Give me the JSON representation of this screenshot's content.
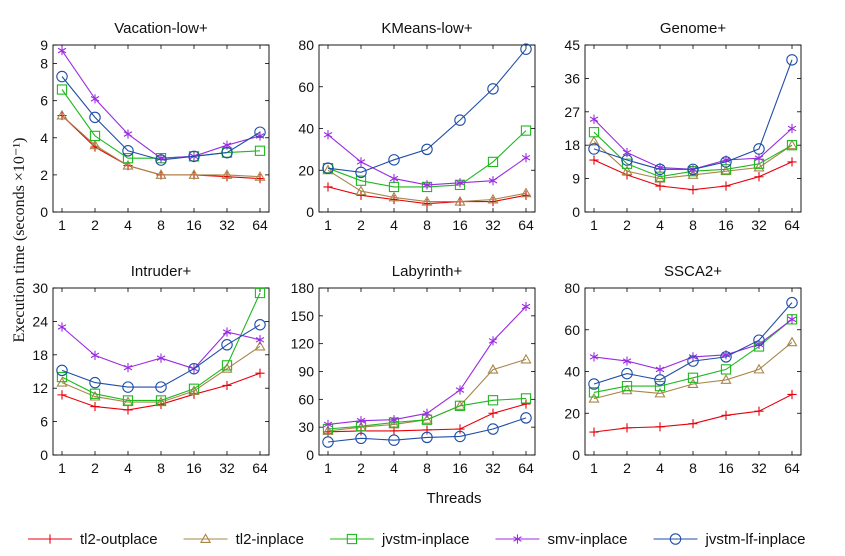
{
  "figure": {
    "ylabel": "Execution time (seconds ×10⁻¹)",
    "xlabel": "Threads"
  },
  "legend": [
    {
      "name": "tl2-outplace",
      "color": "#e8000b",
      "marker": "plus"
    },
    {
      "name": "tl2-inplace",
      "color": "#a8864a",
      "marker": "triangle"
    },
    {
      "name": "jvstm-inplace",
      "color": "#1fb81f",
      "marker": "square"
    },
    {
      "name": "smv-inplace",
      "color": "#9a2be2",
      "marker": "star"
    },
    {
      "name": "jvstm-lf-inplace",
      "color": "#1f4ea8",
      "marker": "circle"
    }
  ],
  "chart_data": [
    {
      "type": "line",
      "title": "Vacation-low+",
      "categories": [
        "1",
        "2",
        "4",
        "8",
        "16",
        "32",
        "64"
      ],
      "yticks": [
        0,
        2,
        4,
        6,
        8,
        9
      ],
      "ylim": [
        0,
        9
      ],
      "series": [
        {
          "name": "tl2-outplace",
          "values": [
            5.2,
            3.5,
            2.5,
            2.0,
            2.0,
            1.9,
            1.8
          ]
        },
        {
          "name": "tl2-inplace",
          "values": [
            5.2,
            3.6,
            2.5,
            2.0,
            2.0,
            2.0,
            1.9
          ]
        },
        {
          "name": "jvstm-inplace",
          "values": [
            6.6,
            4.1,
            2.9,
            2.9,
            3.0,
            3.2,
            3.3
          ]
        },
        {
          "name": "smv-inplace",
          "values": [
            8.7,
            6.1,
            4.2,
            2.9,
            3.0,
            3.6,
            4.1
          ]
        },
        {
          "name": "jvstm-lf-inplace",
          "values": [
            7.3,
            5.1,
            3.3,
            2.8,
            3.0,
            3.2,
            4.3
          ]
        }
      ]
    },
    {
      "type": "line",
      "title": "KMeans-low+",
      "categories": [
        "1",
        "2",
        "4",
        "8",
        "16",
        "32",
        "64"
      ],
      "yticks": [
        0,
        20,
        40,
        60,
        80
      ],
      "ylim": [
        0,
        80
      ],
      "series": [
        {
          "name": "tl2-outplace",
          "values": [
            12,
            8,
            6,
            4,
            5,
            5,
            8
          ]
        },
        {
          "name": "tl2-inplace",
          "values": [
            20,
            10,
            7,
            5,
            5,
            6,
            9
          ]
        },
        {
          "name": "jvstm-inplace",
          "values": [
            21,
            15,
            12,
            12,
            13,
            24,
            39
          ]
        },
        {
          "name": "smv-inplace",
          "values": [
            37,
            24,
            16,
            13,
            14,
            15,
            26
          ]
        },
        {
          "name": "jvstm-lf-inplace",
          "values": [
            21,
            19,
            25,
            30,
            44,
            59,
            78
          ]
        }
      ]
    },
    {
      "type": "line",
      "title": "Genome+",
      "categories": [
        "1",
        "2",
        "4",
        "8",
        "16",
        "32",
        "64"
      ],
      "yticks": [
        0,
        9,
        18,
        27,
        36,
        45
      ],
      "ylim": [
        0,
        45
      ],
      "series": [
        {
          "name": "tl2-outplace",
          "values": [
            14,
            10,
            7,
            6,
            7,
            9.5,
            13.5
          ]
        },
        {
          "name": "tl2-inplace",
          "values": [
            19,
            11,
            9,
            10,
            11,
            12,
            18
          ]
        },
        {
          "name": "jvstm-inplace",
          "values": [
            21.5,
            13,
            9.5,
            11,
            11.5,
            13,
            18
          ]
        },
        {
          "name": "smv-inplace",
          "values": [
            25,
            16,
            12,
            11.5,
            14,
            14.5,
            22.5
          ]
        },
        {
          "name": "jvstm-lf-inplace",
          "values": [
            17,
            14,
            11.5,
            11.5,
            13.5,
            17,
            41
          ]
        }
      ]
    },
    {
      "type": "line",
      "title": "Intruder+",
      "categories": [
        "1",
        "2",
        "4",
        "8",
        "16",
        "32",
        "64"
      ],
      "yticks": [
        0,
        6,
        12,
        18,
        24,
        30
      ],
      "ylim": [
        0,
        30
      ],
      "series": [
        {
          "name": "tl2-outplace",
          "values": [
            10.8,
            8.7,
            8.1,
            9.1,
            10.9,
            12.5,
            14.7
          ]
        },
        {
          "name": "tl2-inplace",
          "values": [
            13,
            10.5,
            9.5,
            9.5,
            11.5,
            15.5,
            19.5
          ]
        },
        {
          "name": "jvstm-inplace",
          "values": [
            14,
            11,
            9.8,
            9.8,
            11.9,
            16.1,
            29.1
          ]
        },
        {
          "name": "smv-inplace",
          "values": [
            23,
            17.9,
            15.7,
            17.4,
            15.5,
            22.1,
            20.7
          ]
        },
        {
          "name": "jvstm-lf-inplace",
          "values": [
            15.2,
            13,
            12.2,
            12.2,
            15.5,
            19.8,
            23.4
          ]
        }
      ]
    },
    {
      "type": "line",
      "title": "Labyrinth+",
      "categories": [
        "1",
        "2",
        "4",
        "8",
        "16",
        "32",
        "64"
      ],
      "yticks": [
        0,
        30,
        60,
        90,
        120,
        150,
        180
      ],
      "ylim": [
        0,
        180
      ],
      "series": [
        {
          "name": "tl2-outplace",
          "values": [
            25,
            26,
            26,
            27,
            28,
            45,
            55
          ]
        },
        {
          "name": "tl2-inplace",
          "values": [
            26,
            30,
            33,
            38,
            53,
            92,
            103
          ]
        },
        {
          "name": "jvstm-inplace",
          "values": [
            28,
            31,
            35,
            38,
            53,
            59,
            61
          ]
        },
        {
          "name": "smv-inplace",
          "values": [
            33,
            37,
            38,
            45,
            70,
            123,
            160
          ]
        },
        {
          "name": "jvstm-lf-inplace",
          "values": [
            14,
            18,
            16,
            19,
            20,
            28,
            40
          ]
        }
      ]
    },
    {
      "type": "line",
      "title": "SSCA2+",
      "categories": [
        "1",
        "2",
        "4",
        "8",
        "16",
        "32",
        "64"
      ],
      "yticks": [
        0,
        20,
        40,
        60,
        80
      ],
      "ylim": [
        0,
        80
      ],
      "series": [
        {
          "name": "tl2-outplace",
          "values": [
            11,
            13,
            13.5,
            15,
            19,
            21,
            29
          ]
        },
        {
          "name": "tl2-inplace",
          "values": [
            27,
            31,
            29.5,
            34,
            36,
            41,
            54
          ]
        },
        {
          "name": "jvstm-inplace",
          "values": [
            30,
            33,
            33,
            37,
            41,
            52,
            65
          ]
        },
        {
          "name": "smv-inplace",
          "values": [
            47,
            45,
            41,
            47,
            48,
            53,
            65
          ]
        },
        {
          "name": "jvstm-lf-inplace",
          "values": [
            34,
            39,
            36,
            45,
            47,
            55,
            73
          ]
        }
      ]
    }
  ]
}
